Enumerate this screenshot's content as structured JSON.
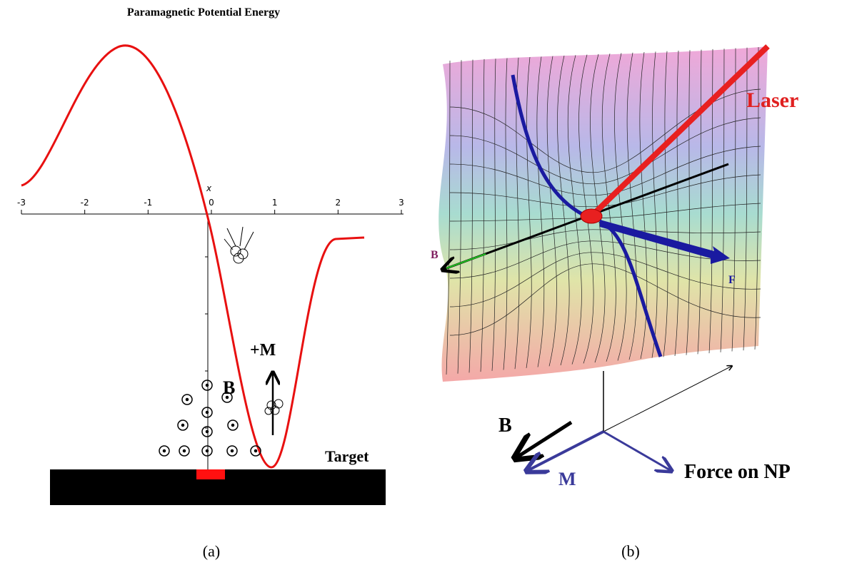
{
  "panel_a": {
    "title": "Paramagnetic Potential Energy",
    "axis_label": "x",
    "ticks": [
      -3,
      -2,
      -1,
      0,
      1,
      2,
      3
    ],
    "field_label": "B",
    "moment_label": "+M",
    "target_label": "Target",
    "caption": "(a)"
  },
  "panel_b": {
    "laser_label": "Laser",
    "field_label": "B",
    "force_label": "F",
    "axes_field_label": "B",
    "axes_moment_label": "M",
    "axes_force_label": "Force on NP",
    "caption": "(b)"
  }
}
